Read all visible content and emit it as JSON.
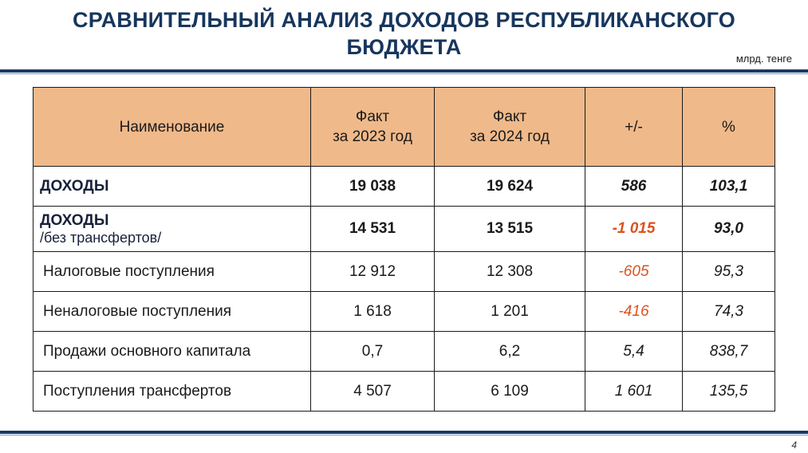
{
  "title": {
    "line1": "СРАВНИТЕЛЬНЫЙ АНАЛИЗ ДОХОДОВ РЕСПУБЛИКАНСКОГО",
    "line2": "БЮДЖЕТА"
  },
  "units": "млрд. тенге",
  "page_number": "4",
  "table": {
    "headers": {
      "name": "Наименование",
      "fact2023_line1": "Факт",
      "fact2023_line2": "за 2023 год",
      "fact2024_line1": "Факт",
      "fact2024_line2": "за 2024 год",
      "diff": "+/-",
      "pct": "%"
    },
    "rows": [
      {
        "name": "ДОХОДЫ",
        "sub": "",
        "fact2023": "19 038",
        "fact2024": "19 624",
        "diff": "586",
        "pct": "103,1"
      },
      {
        "name": "ДОХОДЫ",
        "sub": "/без трансфертов/",
        "fact2023": "14 531",
        "fact2024": "13 515",
        "diff": "-1 015",
        "pct": "93,0"
      },
      {
        "name": "Налоговые поступления",
        "sub": "",
        "fact2023": "12 912",
        "fact2024": "12 308",
        "diff": "-605",
        "pct": "95,3"
      },
      {
        "name": "Неналоговые поступления",
        "sub": "",
        "fact2023": "1 618",
        "fact2024": "1 201",
        "diff": "-416",
        "pct": "74,3"
      },
      {
        "name": "Продажи основного капитала",
        "sub": "",
        "fact2023": "0,7",
        "fact2024": "6,2",
        "diff": "5,4",
        "pct": "838,7"
      },
      {
        "name": "Поступления трансфертов",
        "sub": "",
        "fact2023": "4 507",
        "fact2024": "6 109",
        "diff": "1 601",
        "pct": "135,5"
      }
    ]
  },
  "colors": {
    "title": "#17365d",
    "header_fill": "#f0b98a",
    "negative": "#d9541e",
    "rule": "#1c3a66"
  }
}
